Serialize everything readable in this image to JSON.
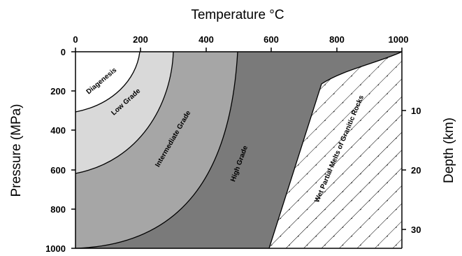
{
  "figure": {
    "top_axis_title": "Temperature °C",
    "left_axis_title": "Pressure (MPa)",
    "right_axis_title": "Depth (km)",
    "temperature_ticks": [
      "0",
      "200",
      "400",
      "600",
      "800",
      "1000"
    ],
    "pressure_ticks": [
      "0",
      "200",
      "400",
      "600",
      "800",
      "1000"
    ],
    "depth_ticks": [
      "10",
      "20",
      "30"
    ],
    "zones": {
      "diagenesis": "Diagenesis",
      "low_grade": "Low Grade",
      "intermediate_grade": "Intermediate Grade",
      "high_grade": "High Grade",
      "melt": "Wet Partial Melts of Granitic Rocks"
    },
    "colors": {
      "diagenesis": "#ffffff",
      "low_grade": "#d9d9d9",
      "intermediate_grade": "#a6a6a6",
      "high_grade": "#7a7a7a",
      "melt": "#ffffff"
    }
  }
}
